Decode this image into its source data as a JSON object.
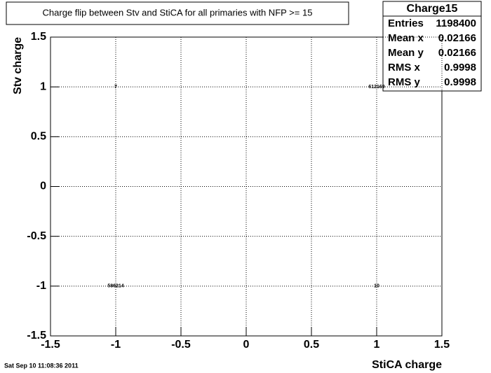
{
  "chart_data": {
    "type": "scatter",
    "title": "Charge flip between Stv and StiCA for all primaries with NFP >= 15",
    "x_label": "StiCA charge",
    "y_label": "Stv charge",
    "x": [
      -1,
      1,
      -1,
      1
    ],
    "y": [
      1,
      1,
      -1,
      -1
    ],
    "values": [
      7,
      612169,
      586214,
      10
    ],
    "xlim": [
      -1.5,
      1.5
    ],
    "ylim": [
      -1.5,
      1.5
    ],
    "xticks": [
      -1.5,
      -1,
      -0.5,
      0,
      0.5,
      1,
      1.5
    ],
    "yticks": [
      -1.5,
      -1,
      -0.5,
      0,
      0.5,
      1,
      1.5
    ],
    "grid": true,
    "stats": {
      "title": "Charge15",
      "rows": [
        {
          "label": "Entries",
          "value": 1198400
        },
        {
          "label": "Mean x",
          "value": 0.02166
        },
        {
          "label": "Mean y",
          "value": 0.02166
        },
        {
          "label": "RMS x",
          "value": 0.9998
        },
        {
          "label": "RMS y",
          "value": 0.9998
        }
      ]
    },
    "timestamp": "Sat Sep 10 11:08:36 2011"
  }
}
